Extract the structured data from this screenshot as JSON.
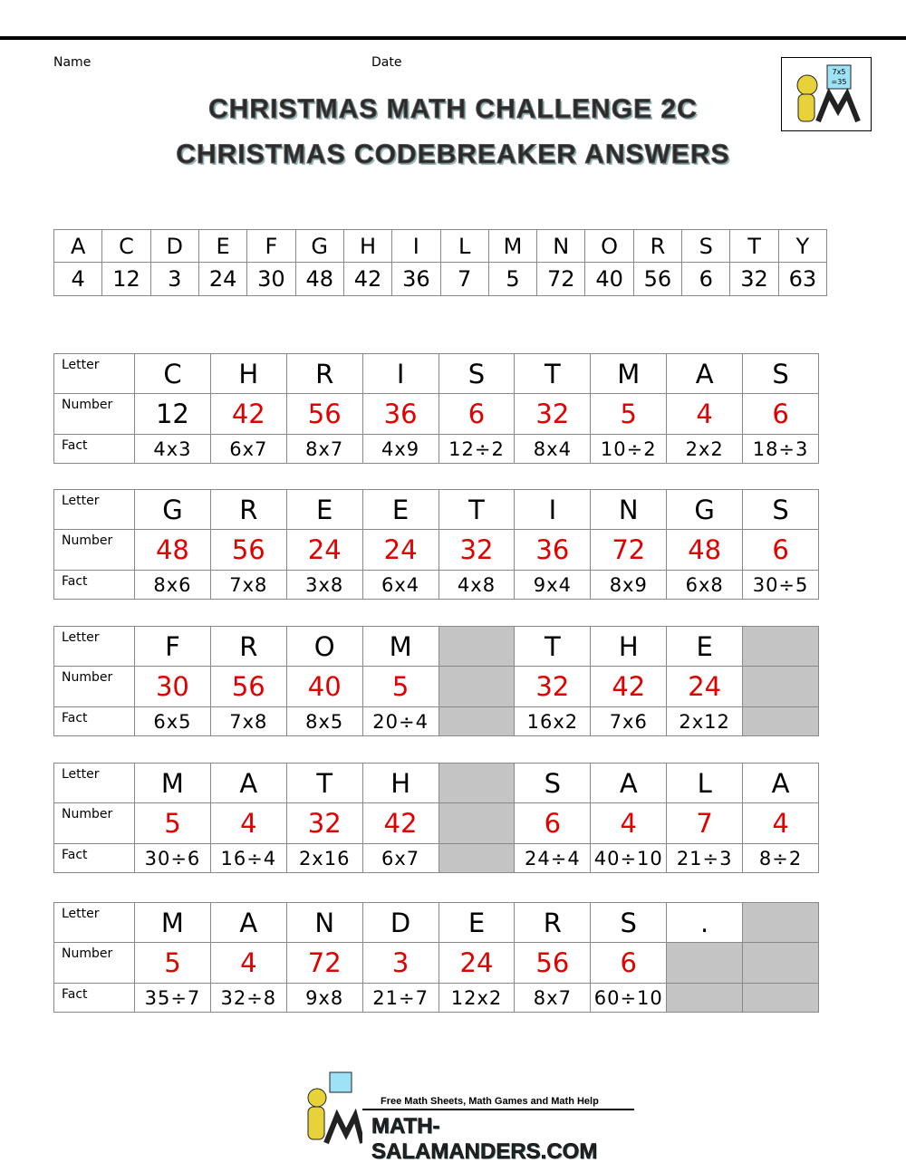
{
  "header": {
    "name_label": "Name",
    "date_label": "Date",
    "title_lines": [
      "CHRISTMAS MATH CHALLENGE 2C",
      "CHRISTMAS CODEBREAKER ANSWERS"
    ],
    "logo_text": [
      "7x5",
      "=35"
    ]
  },
  "key": {
    "letters": [
      "A",
      "C",
      "D",
      "E",
      "F",
      "G",
      "H",
      "I",
      "L",
      "M",
      "N",
      "O",
      "R",
      "S",
      "T",
      "Y"
    ],
    "numbers": [
      "4",
      "12",
      "3",
      "24",
      "30",
      "48",
      "42",
      "36",
      "7",
      "5",
      "72",
      "40",
      "56",
      "6",
      "32",
      "63"
    ]
  },
  "row_labels": [
    "Letter",
    "Number",
    "Fact"
  ],
  "example": {
    "puzzle": 0,
    "column": 0
  },
  "puzzles": [
    {
      "letters": [
        "C",
        "H",
        "R",
        "I",
        "S",
        "T",
        "M",
        "A",
        "S"
      ],
      "numbers": [
        "12",
        "42",
        "56",
        "36",
        "6",
        "32",
        "5",
        "4",
        "6"
      ],
      "facts": [
        "4x3",
        "6x7",
        "8x7",
        "4x9",
        "12÷2",
        "8x4",
        "10÷2",
        "2x2",
        "18÷3"
      ]
    },
    {
      "letters": [
        "G",
        "R",
        "E",
        "E",
        "T",
        "I",
        "N",
        "G",
        "S"
      ],
      "numbers": [
        "48",
        "56",
        "24",
        "24",
        "32",
        "36",
        "72",
        "48",
        "6"
      ],
      "facts": [
        "8x6",
        "7x8",
        "3x8",
        "6x4",
        "4x8",
        "9x4",
        "8x9",
        "6x8",
        "30÷5"
      ]
    },
    {
      "letters": [
        "F",
        "R",
        "O",
        "M",
        null,
        "T",
        "H",
        "E",
        null
      ],
      "numbers": [
        "30",
        "56",
        "40",
        "5",
        null,
        "32",
        "42",
        "24",
        null
      ],
      "facts": [
        "6x5",
        "7x8",
        "8x5",
        "20÷4",
        null,
        "16x2",
        "7x6",
        "2x12",
        null
      ]
    },
    {
      "letters": [
        "M",
        "A",
        "T",
        "H",
        null,
        "S",
        "A",
        "L",
        "A"
      ],
      "numbers": [
        "5",
        "4",
        "32",
        "42",
        null,
        "6",
        "4",
        "7",
        "4"
      ],
      "facts": [
        "30÷6",
        "16÷4",
        "2x16",
        "6x7",
        null,
        "24÷4",
        "40÷10",
        "21÷3",
        "8÷2"
      ]
    },
    {
      "letters": [
        "M",
        "A",
        "N",
        "D",
        "E",
        "R",
        "S",
        ".",
        null
      ],
      "numbers": [
        "5",
        "4",
        "72",
        "3",
        "24",
        "56",
        "6",
        null,
        null
      ],
      "facts": [
        "35÷7",
        "32÷8",
        "9x8",
        "21÷7",
        "12x2",
        "8x7",
        "60÷10",
        null,
        null
      ]
    }
  ],
  "footer": {
    "tagline": "Free Math Sheets, Math Games and Math Help",
    "site": "MATH-SALAMANDERS.COM"
  }
}
